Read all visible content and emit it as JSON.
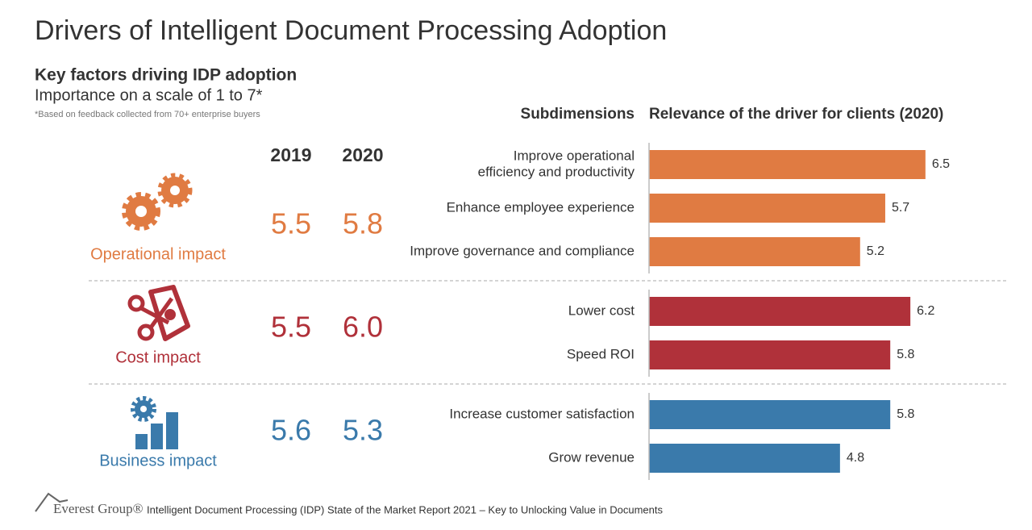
{
  "title": "Drivers of Intelligent Document Processing Adoption",
  "subtitle": "Key factors driving IDP adoption",
  "scale_note": "Importance on a scale of 1 to 7*",
  "footnote": "*Based on feedback collected from 70+ enterprise buyers",
  "year_headers": [
    "2019",
    "2020"
  ],
  "subdimensions_header": "Subdimensions",
  "relevance_header": "Relevance of the driver for clients (2020)",
  "xlim": [
    1,
    7
  ],
  "groups": [
    {
      "name": "Operational impact",
      "color": "#e07b42",
      "scores": [
        "5.5",
        "5.8"
      ],
      "subdimensions": [
        {
          "label": [
            "Improve operational",
            "efficiency and productivity"
          ],
          "value": 6.5
        },
        {
          "label": [
            "Enhance employee experience"
          ],
          "value": 5.7
        },
        {
          "label": [
            "Improve governance and compliance"
          ],
          "value": 5.2
        }
      ]
    },
    {
      "name": "Cost impact",
      "color": "#b0313a",
      "scores": [
        "5.5",
        "6.0"
      ],
      "subdimensions": [
        {
          "label": [
            "Lower cost"
          ],
          "value": 6.2
        },
        {
          "label": [
            "Speed ROI"
          ],
          "value": 5.8
        }
      ]
    },
    {
      "name": "Business impact",
      "color": "#3a7aab",
      "scores": [
        "5.6",
        "5.3"
      ],
      "subdimensions": [
        {
          "label": [
            "Increase customer satisfaction"
          ],
          "value": 5.8
        },
        {
          "label": [
            "Grow revenue"
          ],
          "value": 4.8
        }
      ]
    }
  ],
  "footer": {
    "brand": "Everest Group®",
    "source": "Intelligent Document Processing (IDP) State of the Market Report 2021 – Key to Unlocking Value in Documents"
  }
}
